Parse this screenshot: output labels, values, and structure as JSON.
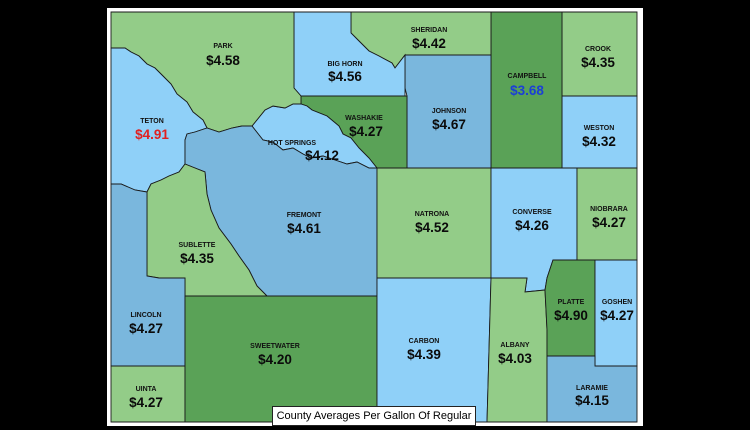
{
  "caption": "County Averages Per Gallon Of Regular",
  "colors": {
    "light_blue": "#8fd0f8",
    "steel_blue": "#7ab7dd",
    "light_green": "#93cc88",
    "dark_green": "#5aa257",
    "low_price": "#1b3fd6",
    "high_price": "#e02020"
  },
  "counties": {
    "park": {
      "name": "PARK",
      "price": "$4.58"
    },
    "big_horn": {
      "name": "BIG HORN",
      "price": "$4.56"
    },
    "sheridan": {
      "name": "SHERIDAN",
      "price": "$4.42"
    },
    "campbell": {
      "name": "CAMPBELL",
      "price": "$3.68"
    },
    "crook": {
      "name": "CROOK",
      "price": "$4.35"
    },
    "teton": {
      "name": "TETON",
      "price": "$4.91"
    },
    "washakie": {
      "name": "WASHAKIE",
      "price": "$4.27"
    },
    "hot_springs": {
      "name": "HOT SPRINGS",
      "price": "$4.12"
    },
    "johnson": {
      "name": "JOHNSON",
      "price": "$4.67"
    },
    "weston": {
      "name": "WESTON",
      "price": "$4.32"
    },
    "fremont": {
      "name": "FREMONT",
      "price": "$4.61"
    },
    "natrona": {
      "name": "NATRONA",
      "price": "$4.52"
    },
    "converse": {
      "name": "CONVERSE",
      "price": "$4.26"
    },
    "niobrara": {
      "name": "NIOBRARA",
      "price": "$4.27"
    },
    "sublette": {
      "name": "SUBLETTE",
      "price": "$4.35"
    },
    "lincoln": {
      "name": "LINCOLN",
      "price": "$4.27"
    },
    "sweetwater": {
      "name": "SWEETWATER",
      "price": "$4.20"
    },
    "carbon": {
      "name": "CARBON",
      "price": "$4.39"
    },
    "albany": {
      "name": "ALBANY",
      "price": "$4.03"
    },
    "platte": {
      "name": "PLATTE",
      "price": "$4.90"
    },
    "goshen": {
      "name": "GOSHEN",
      "price": "$4.27"
    },
    "uinta": {
      "name": "UINTA",
      "price": "$4.27"
    },
    "laramie": {
      "name": "LARAMIE",
      "price": "$4.15"
    }
  }
}
